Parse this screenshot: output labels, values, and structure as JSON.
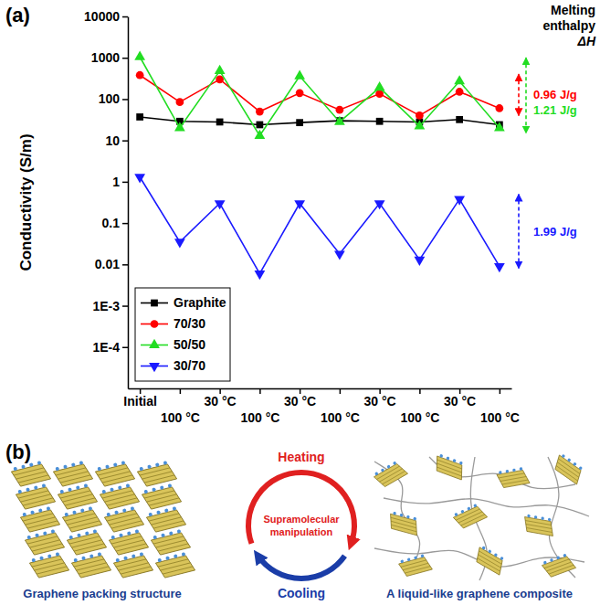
{
  "chart_data": {
    "type": "line",
    "panel_label": "(a)",
    "y_label": "Conductivity (S/m)",
    "categories": [
      "Initial",
      "100 °C",
      "30 °C",
      "100 °C",
      "30 °C",
      "100 °C",
      "30 °C",
      "100 °C",
      "30 °C",
      "100 °C"
    ],
    "series": [
      {
        "name": "Graphite",
        "color": "#000000",
        "marker": "square",
        "values": [
          37,
          29,
          28,
          24,
          27,
          30,
          29,
          28,
          32,
          24
        ]
      },
      {
        "name": "70/30",
        "color": "#ff0000",
        "marker": "circle",
        "values": [
          380,
          85,
          300,
          50,
          140,
          55,
          135,
          40,
          150,
          60
        ]
      },
      {
        "name": "50/50",
        "color": "#22dd22",
        "marker": "triangle-up",
        "values": [
          1050,
          20,
          480,
          13,
          360,
          28,
          190,
          22,
          270,
          20
        ]
      },
      {
        "name": "30/70",
        "color": "#1a1aff",
        "marker": "triangle-down",
        "values": [
          1.3,
          0.035,
          0.3,
          0.006,
          0.3,
          0.018,
          0.3,
          0.013,
          0.38,
          0.009
        ]
      }
    ],
    "log": "y",
    "ylim": [
      1e-05,
      10000
    ],
    "yticks": [
      {
        "value": 0.0001,
        "label": "1E-4"
      },
      {
        "value": 0.001,
        "label": "1E-3"
      },
      0.01,
      0.1,
      1,
      10,
      100,
      1000,
      10000
    ],
    "legend": "lower left",
    "annotations": [
      {
        "text": "Melting enthalpy ΔH"
      },
      {
        "text": "0.96 J/g",
        "color": "#ff0000",
        "range": [
          400,
          40
        ]
      },
      {
        "text": "1.21 J/g",
        "color": "#22dd22",
        "range": [
          1000,
          15
        ]
      },
      {
        "text": "1.99 J/g",
        "color": "#1a1aff",
        "range": [
          0.5,
          0.008
        ]
      }
    ]
  },
  "diagram": {
    "panel_label": "(b)",
    "left_caption": "Graphene packing structure",
    "right_caption": "A liquid-like graphene composite",
    "cycle": {
      "heating": "Heating",
      "center": "Supramolecular manipulation",
      "cooling": "Cooling"
    }
  }
}
